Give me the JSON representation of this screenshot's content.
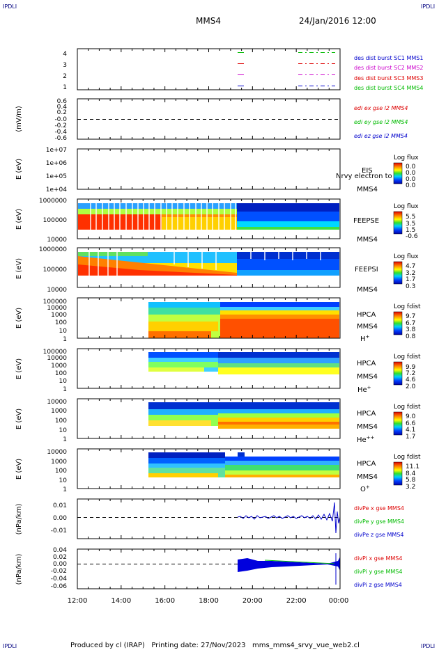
{
  "corner_labels": {
    "tl": "IPDLI",
    "tr": "IPDLI",
    "bl": "IPDLI",
    "br": "IPDLI"
  },
  "header": {
    "spacecraft": "MMS4",
    "datetime": "24/Jan/2016 12:00"
  },
  "footer": {
    "text": "Produced by cl (IRAP)   Printing date: 27/Nov/2023   mms_mms4_srvy_vue_web2.cl"
  },
  "chart_data": {
    "type": "multi-panel time series",
    "x_ticks": [
      "12:00",
      "14:00",
      "16:00",
      "18:00",
      "20:00",
      "22:00",
      "00:00"
    ],
    "x_range_hours": [
      12,
      24
    ],
    "panels": [
      {
        "id": "burst",
        "y_ticks": [
          "4",
          "3",
          "2",
          "1"
        ],
        "legend": [
          {
            "text": "des dist burst SC1 MMS1",
            "color": "#0000cc"
          },
          {
            "text": "des dist burst SC2 MMS2",
            "color": "#cc00cc"
          },
          {
            "text": "des dist burst SC3 MMS3",
            "color": "#dd0000"
          },
          {
            "text": "des dist burst SC4 MMS4",
            "color": "#00bb00"
          }
        ],
        "burst_intervals_hours": [
          [
            19.2,
            19.5
          ],
          [
            21.6,
            23.9
          ]
        ]
      },
      {
        "id": "edi",
        "ylabel": "(mV/m)",
        "y_ticks": [
          "0.6",
          "0.4",
          "0.2",
          "-0.0",
          "-0.2",
          "-0.4",
          "-0.6"
        ],
        "legend": [
          {
            "text": "edi ex gse l2 MMS4",
            "color": "#dd0000"
          },
          {
            "text": "edi ey gse l2 MMS4",
            "color": "#00bb00"
          },
          {
            "text": "edi ez gse l2 MMS4",
            "color": "#0000cc"
          }
        ]
      },
      {
        "id": "eis",
        "ylabel": "E (eV)",
        "y_ticks": [
          "1e+07",
          "1e+06",
          "1e+05",
          "1e+04"
        ],
        "labels": [
          "EIS",
          "MMS4"
        ],
        "overlay_text": "Nrvy electron to",
        "colorbar": {
          "title": "Log flux",
          "ticks": [
            "0.0",
            "0.0",
            "0.0",
            "0.0"
          ]
        }
      },
      {
        "id": "feepse",
        "ylabel": "E (eV)",
        "y_ticks": [
          "1000000",
          "100000",
          "10000"
        ],
        "labels": [
          "FEEPSE",
          "MMS4"
        ],
        "colorbar": {
          "title": "Log flux",
          "ticks": [
            "5.5",
            "3.5",
            "1.5",
            "-0.6"
          ]
        }
      },
      {
        "id": "feepsi",
        "ylabel": "E (eV)",
        "y_ticks": [
          "1000000",
          "100000",
          "10000"
        ],
        "labels": [
          "FEEPSI",
          "MMS4"
        ],
        "colorbar": {
          "title": "Log flux",
          "ticks": [
            "4.7",
            "3.2",
            "1.7",
            "0.3"
          ]
        }
      },
      {
        "id": "hpca_h",
        "ylabel": "E (eV)",
        "y_ticks": [
          "100000",
          "10000",
          "1000",
          "100",
          "10",
          "1"
        ],
        "labels": [
          "HPCA",
          "MMS4"
        ],
        "species": "H",
        "species_sup": "+",
        "colorbar": {
          "title": "Log fdist",
          "ticks": [
            "9.7",
            "6.7",
            "3.8",
            "0.8"
          ]
        }
      },
      {
        "id": "hpca_he",
        "ylabel": "E (eV)",
        "y_ticks": [
          "100000",
          "10000",
          "1000",
          "100",
          "10",
          "1"
        ],
        "labels": [
          "HPCA",
          "MMS4"
        ],
        "species": "He",
        "species_sup": "+",
        "colorbar": {
          "title": "Log fdist",
          "ticks": [
            "9.9",
            "7.2",
            "4.6",
            "2.0"
          ]
        }
      },
      {
        "id": "hpca_hepp",
        "ylabel": "E (eV)",
        "y_ticks": [
          "10000",
          "1000",
          "100",
          "10",
          "1"
        ],
        "labels": [
          "HPCA",
          "MMS4"
        ],
        "species": "He",
        "species_sup": "++",
        "colorbar": {
          "title": "Log fdist",
          "ticks": [
            "9.0",
            "6.6",
            "4.1",
            "1.7"
          ]
        }
      },
      {
        "id": "hpca_o",
        "ylabel": "E (eV)",
        "y_ticks": [
          "10000",
          "1000",
          "100",
          "10",
          "1"
        ],
        "labels": [
          "HPCA",
          "MMS4"
        ],
        "species": "O",
        "species_sup": "+",
        "colorbar": {
          "title": "Log fdist",
          "ticks": [
            "11.1",
            "8.4",
            "5.8",
            "3.2"
          ]
        }
      },
      {
        "id": "divpe",
        "ylabel": "(nPa/km)",
        "y_ticks": [
          "0.01",
          "0.00",
          "-0.01"
        ],
        "legend": [
          {
            "text": "divPe x gse MMS4",
            "color": "#dd0000"
          },
          {
            "text": "divPe y gse MMS4",
            "color": "#00bb00"
          },
          {
            "text": "divPe z gse MMS4",
            "color": "#0000cc"
          }
        ]
      },
      {
        "id": "divpi",
        "ylabel": "(nPa/km)",
        "y_ticks": [
          "0.04",
          "0.02",
          "0.00",
          "-0.02",
          "-0.04",
          "-0.06"
        ],
        "legend": [
          {
            "text": "divPi x gse MMS4",
            "color": "#dd0000"
          },
          {
            "text": "divPi y gse MMS4",
            "color": "#00bb00"
          },
          {
            "text": "divPi z gse MMS4",
            "color": "#0000cc"
          }
        ]
      }
    ]
  }
}
